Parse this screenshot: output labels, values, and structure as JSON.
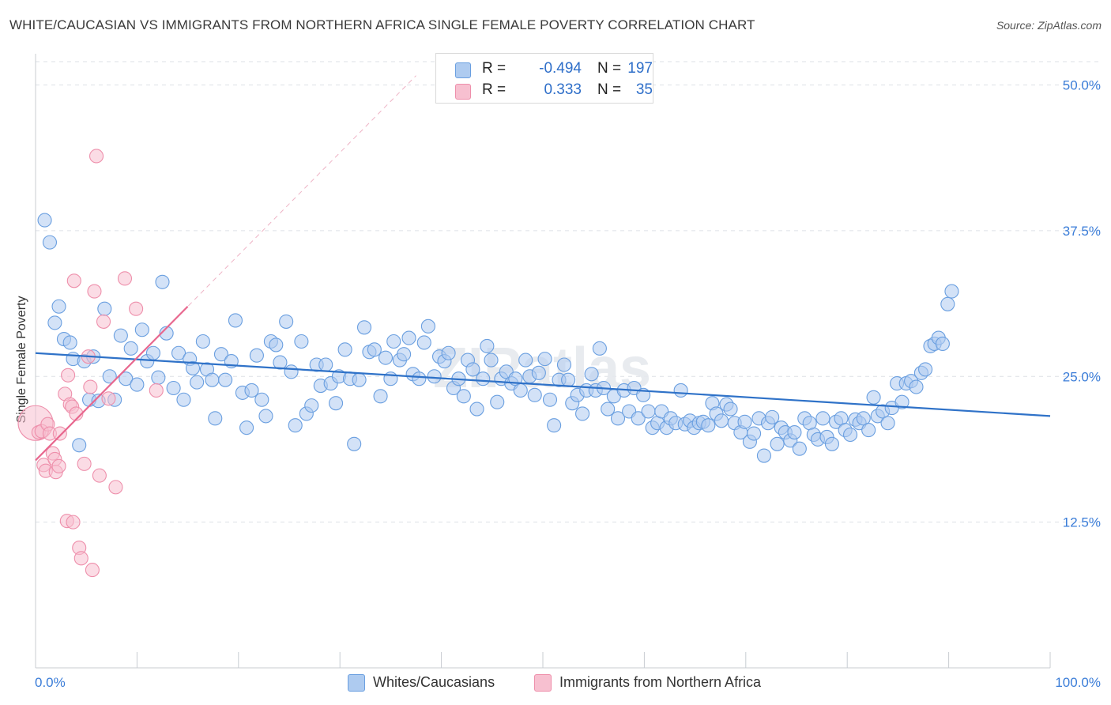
{
  "title": "WHITE/CAUCASIAN VS IMMIGRANTS FROM NORTHERN AFRICA SINGLE FEMALE POVERTY CORRELATION CHART",
  "source": "Source: ZipAtlas.com",
  "watermark": "ZIPatlas",
  "legend": {
    "rows": [
      {
        "r_label": "R =",
        "r_value": "-0.494",
        "n_label": "N =",
        "n_value": "197",
        "color": "#aecbf0",
        "stroke": "#6a9fe0"
      },
      {
        "r_label": "R =",
        "r_value": "0.333",
        "n_label": "N =",
        "n_value": "35",
        "color": "#f7c0d0",
        "stroke": "#ee8fab"
      }
    ]
  },
  "bottom_legend": [
    {
      "label": "Whites/Caucasians",
      "color": "#aecbf0",
      "stroke": "#6a9fe0"
    },
    {
      "label": "Immigrants from Northern Africa",
      "color": "#f7c0d0",
      "stroke": "#ee8fab"
    }
  ],
  "chart_data": {
    "type": "scatter",
    "title": "WHITE/CAUCASIAN VS IMMIGRANTS FROM NORTHERN AFRICA SINGLE FEMALE POVERTY CORRELATION CHART",
    "xlabel": "",
    "ylabel": "Single Female Poverty",
    "xlim": [
      0,
      100
    ],
    "ylim": [
      0,
      52
    ],
    "x_tick_labels": [
      "0.0%",
      "100.0%"
    ],
    "y_ticks": [
      12.5,
      25.0,
      37.5,
      50.0
    ],
    "y_tick_labels": [
      "12.5%",
      "25.0%",
      "37.5%",
      "50.0%"
    ],
    "grid": "horizontal dashed",
    "legend_position": "top-center",
    "colors": {
      "blue_fill": "#aecbf0",
      "blue_stroke": "#6a9fe0",
      "blue_line": "#2f72c8",
      "pink_fill": "#f7c0d0",
      "pink_stroke": "#ee8fab",
      "pink_line": "#e8688f",
      "tick_label": "#3b7dd8"
    },
    "series": [
      {
        "name": "Whites/Caucasians",
        "trend": {
          "x": [
            0,
            100
          ],
          "y": [
            27.0,
            21.6
          ]
        },
        "points": [
          [
            0.9,
            38.4
          ],
          [
            1.4,
            36.5
          ],
          [
            1.9,
            29.6
          ],
          [
            2.3,
            31.0
          ],
          [
            2.8,
            28.2
          ],
          [
            3.4,
            27.9
          ],
          [
            3.7,
            26.5
          ],
          [
            4.3,
            19.1
          ],
          [
            4.8,
            26.3
          ],
          [
            5.3,
            23.0
          ],
          [
            5.7,
            26.7
          ],
          [
            6.2,
            22.9
          ],
          [
            6.8,
            30.8
          ],
          [
            7.3,
            25.0
          ],
          [
            7.8,
            23.0
          ],
          [
            8.4,
            28.5
          ],
          [
            8.9,
            24.8
          ],
          [
            9.4,
            27.4
          ],
          [
            10.0,
            24.3
          ],
          [
            10.5,
            29.0
          ],
          [
            11.0,
            26.3
          ],
          [
            11.6,
            27.0
          ],
          [
            12.1,
            24.9
          ],
          [
            12.5,
            33.1
          ],
          [
            12.9,
            28.7
          ],
          [
            13.6,
            24.0
          ],
          [
            14.1,
            27.0
          ],
          [
            14.6,
            23.0
          ],
          [
            15.2,
            26.5
          ],
          [
            15.5,
            25.7
          ],
          [
            15.9,
            24.5
          ],
          [
            16.5,
            28.0
          ],
          [
            16.9,
            25.6
          ],
          [
            17.4,
            24.7
          ],
          [
            17.7,
            21.4
          ],
          [
            18.3,
            26.9
          ],
          [
            18.7,
            24.7
          ],
          [
            19.3,
            26.3
          ],
          [
            19.7,
            29.8
          ],
          [
            20.4,
            23.6
          ],
          [
            20.8,
            20.6
          ],
          [
            21.3,
            23.8
          ],
          [
            21.8,
            26.8
          ],
          [
            22.3,
            23.0
          ],
          [
            22.7,
            21.6
          ],
          [
            23.2,
            28.0
          ],
          [
            23.7,
            27.7
          ],
          [
            24.1,
            26.2
          ],
          [
            24.7,
            29.7
          ],
          [
            25.2,
            25.4
          ],
          [
            25.6,
            20.8
          ],
          [
            26.2,
            28.0
          ],
          [
            26.7,
            21.8
          ],
          [
            27.2,
            22.5
          ],
          [
            27.7,
            26.0
          ],
          [
            28.1,
            24.2
          ],
          [
            28.6,
            26.0
          ],
          [
            29.1,
            24.4
          ],
          [
            29.6,
            22.7
          ],
          [
            29.9,
            25.0
          ],
          [
            30.5,
            27.3
          ],
          [
            31.0,
            24.8
          ],
          [
            31.4,
            19.2
          ],
          [
            31.9,
            24.7
          ],
          [
            32.4,
            29.2
          ],
          [
            32.9,
            27.1
          ],
          [
            33.4,
            27.3
          ],
          [
            34.0,
            23.3
          ],
          [
            34.5,
            26.6
          ],
          [
            35.0,
            24.8
          ],
          [
            35.3,
            28.0
          ],
          [
            35.9,
            26.4
          ],
          [
            36.3,
            26.9
          ],
          [
            36.8,
            28.3
          ],
          [
            37.2,
            25.2
          ],
          [
            37.8,
            24.8
          ],
          [
            38.3,
            27.9
          ],
          [
            38.7,
            29.3
          ],
          [
            39.3,
            25.0
          ],
          [
            39.8,
            26.7
          ],
          [
            40.3,
            26.3
          ],
          [
            40.7,
            27.0
          ],
          [
            41.2,
            24.0
          ],
          [
            41.7,
            24.8
          ],
          [
            42.2,
            23.3
          ],
          [
            42.6,
            26.4
          ],
          [
            43.1,
            25.6
          ],
          [
            43.5,
            22.2
          ],
          [
            44.1,
            24.8
          ],
          [
            44.5,
            27.6
          ],
          [
            44.9,
            26.4
          ],
          [
            45.5,
            22.8
          ],
          [
            45.9,
            24.8
          ],
          [
            46.4,
            25.4
          ],
          [
            46.9,
            24.4
          ],
          [
            47.3,
            24.8
          ],
          [
            47.8,
            23.8
          ],
          [
            48.3,
            26.4
          ],
          [
            48.7,
            25.0
          ],
          [
            49.2,
            23.4
          ],
          [
            49.6,
            25.3
          ],
          [
            50.2,
            26.5
          ],
          [
            50.7,
            23.0
          ],
          [
            51.1,
            20.8
          ],
          [
            51.6,
            24.7
          ],
          [
            52.1,
            26.0
          ],
          [
            52.5,
            24.7
          ],
          [
            52.9,
            22.7
          ],
          [
            53.4,
            23.4
          ],
          [
            53.9,
            21.8
          ],
          [
            54.3,
            23.8
          ],
          [
            54.8,
            25.2
          ],
          [
            55.2,
            23.8
          ],
          [
            55.6,
            27.4
          ],
          [
            56.0,
            24.0
          ],
          [
            56.4,
            22.2
          ],
          [
            57.0,
            23.3
          ],
          [
            57.4,
            21.4
          ],
          [
            58.0,
            23.8
          ],
          [
            58.5,
            22.0
          ],
          [
            59.0,
            24.0
          ],
          [
            59.4,
            21.4
          ],
          [
            59.9,
            23.4
          ],
          [
            60.4,
            22.0
          ],
          [
            60.8,
            20.6
          ],
          [
            61.3,
            21.0
          ],
          [
            61.7,
            22.0
          ],
          [
            62.2,
            20.6
          ],
          [
            62.6,
            21.4
          ],
          [
            63.1,
            21.0
          ],
          [
            63.6,
            23.8
          ],
          [
            64.0,
            20.9
          ],
          [
            64.5,
            21.2
          ],
          [
            64.9,
            20.6
          ],
          [
            65.4,
            21.0
          ],
          [
            65.8,
            21.1
          ],
          [
            66.3,
            20.8
          ],
          [
            66.7,
            22.7
          ],
          [
            67.1,
            21.8
          ],
          [
            67.6,
            21.2
          ],
          [
            68.1,
            22.6
          ],
          [
            68.5,
            22.2
          ],
          [
            68.9,
            21.0
          ],
          [
            69.5,
            20.2
          ],
          [
            69.9,
            21.1
          ],
          [
            70.4,
            19.4
          ],
          [
            70.8,
            20.1
          ],
          [
            71.3,
            21.4
          ],
          [
            71.8,
            18.2
          ],
          [
            72.2,
            21.0
          ],
          [
            72.6,
            21.5
          ],
          [
            73.1,
            19.2
          ],
          [
            73.5,
            20.6
          ],
          [
            73.9,
            20.2
          ],
          [
            74.4,
            19.5
          ],
          [
            74.8,
            20.2
          ],
          [
            75.3,
            18.8
          ],
          [
            75.8,
            21.4
          ],
          [
            76.3,
            21.0
          ],
          [
            76.7,
            20.0
          ],
          [
            77.1,
            19.6
          ],
          [
            77.6,
            21.4
          ],
          [
            78.0,
            19.8
          ],
          [
            78.5,
            19.2
          ],
          [
            78.9,
            21.1
          ],
          [
            79.4,
            21.4
          ],
          [
            79.8,
            20.4
          ],
          [
            80.3,
            20.0
          ],
          [
            80.8,
            21.3
          ],
          [
            81.2,
            21.0
          ],
          [
            81.6,
            21.4
          ],
          [
            82.1,
            20.4
          ],
          [
            82.6,
            23.2
          ],
          [
            83.0,
            21.6
          ],
          [
            83.5,
            22.0
          ],
          [
            84.0,
            21.0
          ],
          [
            84.4,
            22.3
          ],
          [
            84.9,
            24.4
          ],
          [
            85.4,
            22.8
          ],
          [
            85.8,
            24.4
          ],
          [
            86.3,
            24.6
          ],
          [
            86.8,
            24.1
          ],
          [
            87.3,
            25.3
          ],
          [
            87.7,
            25.6
          ],
          [
            88.2,
            27.6
          ],
          [
            88.6,
            27.8
          ],
          [
            89.0,
            28.3
          ],
          [
            89.4,
            27.8
          ],
          [
            89.9,
            31.2
          ],
          [
            90.3,
            32.3
          ]
        ]
      },
      {
        "name": "Immigrants from Northern Africa",
        "trend": {
          "x": [
            0,
            15.0
          ],
          "y": [
            17.8,
            31.0
          ]
        },
        "trend_extended": {
          "x": [
            0,
            37.5
          ],
          "y": [
            17.8,
            50.8
          ]
        },
        "points": [
          [
            0.0,
            21.0
          ],
          [
            0.3,
            20.2
          ],
          [
            0.6,
            20.3
          ],
          [
            0.8,
            17.4
          ],
          [
            1.0,
            16.9
          ],
          [
            1.2,
            20.9
          ],
          [
            1.4,
            20.1
          ],
          [
            1.7,
            18.4
          ],
          [
            1.9,
            17.9
          ],
          [
            2.0,
            16.8
          ],
          [
            2.3,
            17.3
          ],
          [
            2.4,
            20.1
          ],
          [
            2.9,
            23.5
          ],
          [
            3.1,
            12.6
          ],
          [
            3.2,
            25.1
          ],
          [
            3.4,
            22.6
          ],
          [
            3.6,
            22.4
          ],
          [
            3.7,
            12.5
          ],
          [
            3.8,
            33.2
          ],
          [
            4.0,
            21.8
          ],
          [
            4.3,
            10.3
          ],
          [
            4.5,
            9.4
          ],
          [
            4.8,
            17.5
          ],
          [
            5.2,
            26.7
          ],
          [
            5.4,
            24.1
          ],
          [
            5.6,
            8.4
          ],
          [
            5.8,
            32.3
          ],
          [
            6.0,
            43.9
          ],
          [
            6.3,
            16.5
          ],
          [
            6.7,
            29.7
          ],
          [
            7.2,
            23.1
          ],
          [
            7.9,
            15.5
          ],
          [
            8.8,
            33.4
          ],
          [
            9.9,
            30.8
          ],
          [
            11.9,
            23.8
          ]
        ]
      }
    ]
  }
}
